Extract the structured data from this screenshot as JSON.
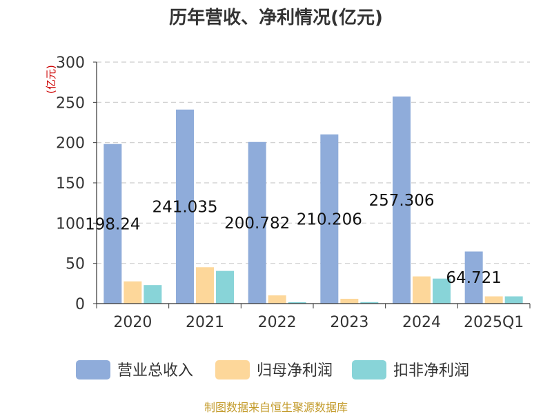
{
  "chart_data": {
    "type": "bar",
    "title": "历年营收、净利情况(亿元)",
    "ylabel": "(亿元)",
    "xlabel": "",
    "ylim": [
      0,
      300
    ],
    "yticks": [
      0,
      50,
      100,
      150,
      200,
      250,
      300
    ],
    "categories": [
      "2020",
      "2021",
      "2022",
      "2023",
      "2024",
      "2025Q1"
    ],
    "series": [
      {
        "name": "营业总收入",
        "color": "#8FACDA",
        "values": [
          198.24,
          241.035,
          200.782,
          210.206,
          257.306,
          64.721
        ]
      },
      {
        "name": "归母净利润",
        "color": "#FDD79A",
        "values": [
          27.6,
          45.2,
          10.2,
          6.0,
          33.8,
          9.0
        ]
      },
      {
        "name": "扣非净利润",
        "color": "#88D4D8",
        "values": [
          23.0,
          40.6,
          1.8,
          1.9,
          31.1,
          9.0
        ]
      }
    ],
    "data_labels": [
      "198.24",
      "241.035",
      "200.782",
      "210.206",
      "257.306",
      "64.721"
    ],
    "grid": true,
    "legend_position": "bottom",
    "ylabel_color": "#CC0000"
  },
  "source": "制图数据来自恒生聚源数据库",
  "source_color": "#C39B2B"
}
